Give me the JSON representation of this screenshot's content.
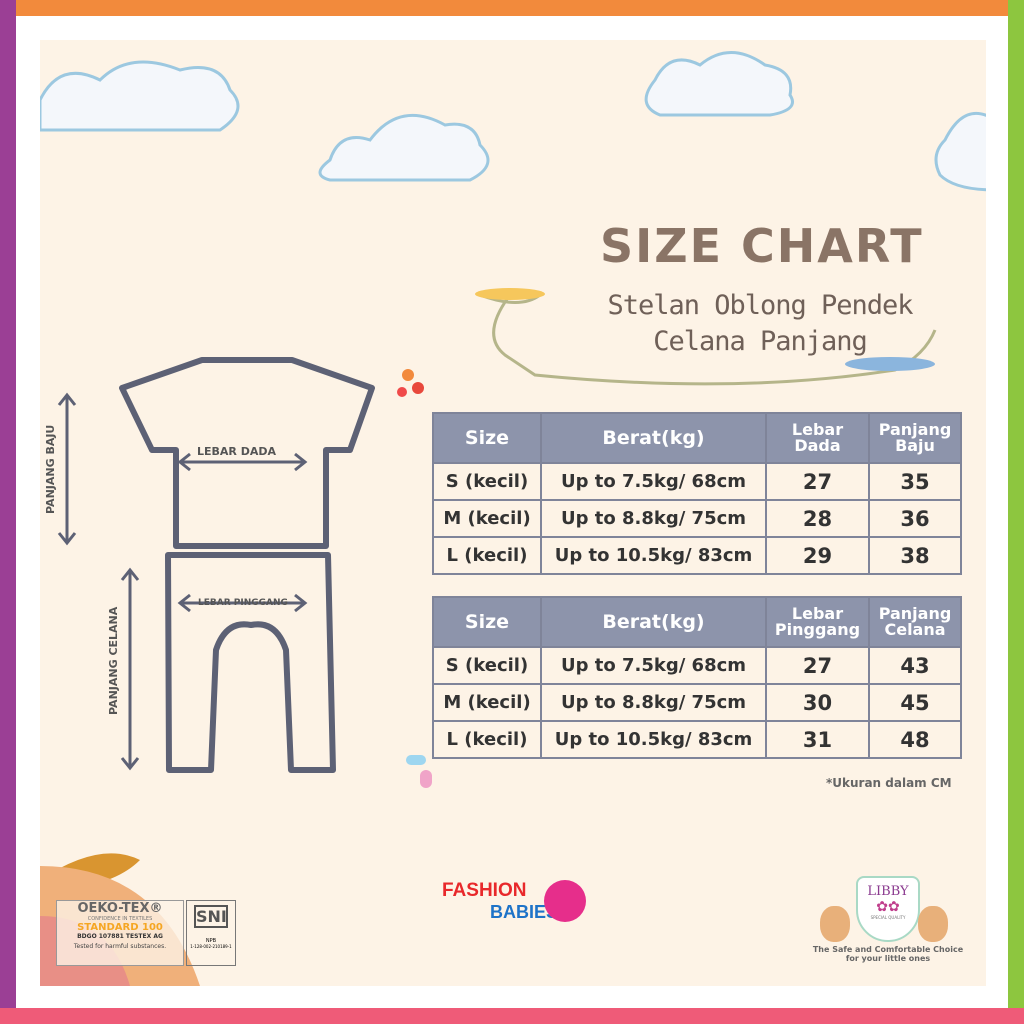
{
  "title": "SIZE CHART",
  "subtitle_1": "Stelan Oblong Pendek",
  "subtitle_2": "Celana Panjang",
  "diagram": {
    "chest": "LEBAR DADA",
    "shirt_length": "PANJANG BAJU",
    "waist": "LEBAR PINGGANG",
    "pants_length": "PANJANG CELANA"
  },
  "shirt_table": {
    "headers": [
      "Size",
      "Berat(kg)",
      "Lebar Dada",
      "Panjang Baju"
    ],
    "rows": [
      [
        "S (kecil)",
        "Up to 7.5kg/ 68cm",
        "27",
        "35"
      ],
      [
        "M (kecil)",
        "Up to 8.8kg/ 75cm",
        "28",
        "36"
      ],
      [
        "L (kecil)",
        "Up to 10.5kg/ 83cm",
        "29",
        "38"
      ]
    ]
  },
  "pants_table": {
    "headers": [
      "Size",
      "Berat(kg)",
      "Lebar Pinggang",
      "Panjang Celana"
    ],
    "rows": [
      [
        "S (kecil)",
        "Up to 7.5kg/ 68cm",
        "27",
        "43"
      ],
      [
        "M (kecil)",
        "Up to 8.8kg/ 75cm",
        "30",
        "45"
      ],
      [
        "L (kecil)",
        "Up to 10.5kg/ 83cm",
        "31",
        "48"
      ]
    ]
  },
  "note": "*Ukuran dalam CM",
  "oeko": {
    "name": "OEKO-TEX®",
    "tag": "CONFIDENCE IN TEXTILES",
    "standard": "STANDARD 100",
    "code": "BDGO 107881 TESTEX AG",
    "tested": "Tested for harmful substances."
  },
  "sni": {
    "mark": "SNI",
    "npb": "NPB",
    "number": "1-128-002-210189-1"
  },
  "brand": {
    "line1": "FASHION",
    "line2": "BABIES"
  },
  "libby": {
    "name": "LIBBY",
    "quality": "SPECIAL QUALITY",
    "tagline_1": "The Safe and Comfortable Choice",
    "tagline_2": "for your little ones"
  },
  "colors": {
    "top": "#f28a3c",
    "left": "#9b3f95",
    "right": "#8dc63f",
    "bottom": "#ef5b78",
    "header": "#8d94ab",
    "outline": "#5d6175"
  }
}
